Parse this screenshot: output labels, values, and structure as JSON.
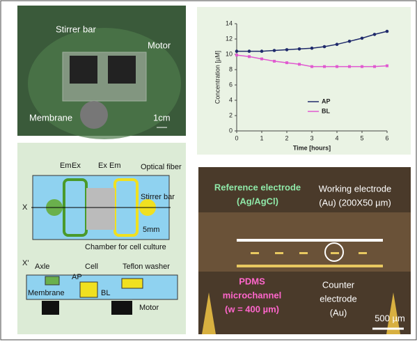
{
  "photo_device": {
    "labels": [
      "Stirrer bar",
      "Motor",
      "Membrane",
      "1cm"
    ]
  },
  "chart_data": {
    "type": "line",
    "x": [
      0,
      0.5,
      1,
      1.5,
      2,
      2.5,
      3,
      3.5,
      4,
      4.5,
      5,
      5.5,
      6
    ],
    "series": [
      {
        "name": "AP",
        "color": "#1f2a6b",
        "values": [
          10.4,
          10.4,
          10.4,
          10.5,
          10.6,
          10.7,
          10.8,
          11.0,
          11.3,
          11.7,
          12.1,
          12.6,
          13.0
        ]
      },
      {
        "name": "BL",
        "color": "#e05ad0",
        "values": [
          9.9,
          9.7,
          9.4,
          9.1,
          8.9,
          8.7,
          8.4,
          8.4,
          8.4,
          8.4,
          8.4,
          8.4,
          8.5
        ]
      }
    ],
    "xlabel": "Time [hours]",
    "ylabel": "Concentration [µM]",
    "xlim": [
      0,
      6
    ],
    "xticks": [
      0,
      1,
      2,
      3,
      4,
      5,
      6
    ],
    "ylim": [
      0,
      14
    ],
    "yticks": [
      0,
      2,
      4,
      6,
      8,
      10,
      12,
      14
    ]
  },
  "diagram": {
    "labels": [
      "Em",
      "Ex",
      "Ex",
      "Em",
      "Optical fiber",
      "Stirrer bar",
      "X",
      "5mm",
      "Chamber for cell culture",
      "X'",
      "Axle",
      "Cell",
      "Teflon washer",
      "AP",
      "Membrane",
      "BL",
      "Motor"
    ]
  },
  "photo_chip": {
    "labels": [
      "Reference electrode",
      "(Ag/AgCl)",
      "Working electrode",
      "(Au) (200X50 µm)",
      "PDMS",
      "microchannel",
      "(w = 400 µm)",
      "Counter",
      "electrode",
      "(Au)",
      "500 µm"
    ]
  }
}
